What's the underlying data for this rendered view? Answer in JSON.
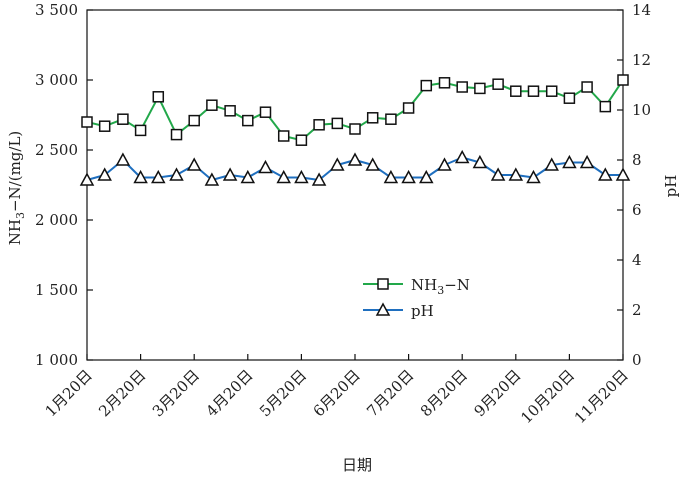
{
  "chart_data": {
    "type": "line",
    "title": "",
    "xlabel": "日期",
    "ylabel_left": "NH3−N/(mg/L)",
    "ylabel_left_parts": {
      "a": "NH",
      "sub": "3",
      "b": "−N/(mg/L)"
    },
    "ylabel_right": "pH",
    "ylim_left": [
      1000,
      3500
    ],
    "ylim_right": [
      0,
      14
    ],
    "yticks_left": [
      1000,
      1500,
      2000,
      2500,
      3000,
      3500
    ],
    "yticks_left_labels": [
      "1 000",
      "1 500",
      "2 000",
      "2 500",
      "3 000",
      "3 500"
    ],
    "yticks_right": [
      0,
      2,
      4,
      6,
      8,
      10,
      12,
      14
    ],
    "yticks_right_labels": [
      "0",
      "2",
      "4",
      "6",
      "8",
      "10",
      "12",
      "14"
    ],
    "xlim": [
      0,
      10
    ],
    "x_categories": [
      "1月20日",
      "2月20日",
      "3月20日",
      "4月20日",
      "5月20日",
      "6月20日",
      "7月20日",
      "8月20日",
      "9月20日",
      "10月20日",
      "11月20日"
    ],
    "grid": false,
    "legend_position": "center",
    "series": [
      {
        "name": "NH3−N",
        "name_parts": {
          "a": "NH",
          "sub": "3",
          "b": "−N"
        },
        "axis": "left",
        "color": "#22a84a",
        "marker": "square",
        "x": [
          0,
          0.33,
          0.67,
          1.0,
          1.33,
          1.67,
          2.0,
          2.33,
          2.67,
          3.0,
          3.33,
          3.67,
          4.0,
          4.33,
          4.67,
          5.0,
          5.33,
          5.67,
          6.0,
          6.33,
          6.67,
          7.0,
          7.33,
          7.67,
          8.0,
          8.33,
          8.67,
          9.0,
          9.33,
          9.67,
          10.0
        ],
        "values": [
          2700,
          2670,
          2720,
          2640,
          2880,
          2610,
          2710,
          2820,
          2780,
          2710,
          2770,
          2600,
          2570,
          2680,
          2690,
          2650,
          2730,
          2720,
          2800,
          2960,
          2980,
          2950,
          2940,
          2970,
          2920,
          2920,
          2920,
          2870,
          2950,
          2810,
          3000
        ]
      },
      {
        "name": "pH",
        "axis": "right",
        "color": "#1f6fbf",
        "marker": "triangle",
        "x": [
          0,
          0.33,
          0.67,
          1.0,
          1.33,
          1.67,
          2.0,
          2.33,
          2.67,
          3.0,
          3.33,
          3.67,
          4.0,
          4.33,
          4.67,
          5.0,
          5.33,
          5.67,
          6.0,
          6.33,
          6.67,
          7.0,
          7.33,
          7.67,
          8.0,
          8.33,
          8.67,
          9.0,
          9.33,
          9.67,
          10.0
        ],
        "values": [
          7.2,
          7.4,
          8.0,
          7.3,
          7.3,
          7.4,
          7.8,
          7.2,
          7.4,
          7.3,
          7.7,
          7.3,
          7.3,
          7.2,
          7.8,
          8.0,
          7.8,
          7.3,
          7.3,
          7.3,
          7.8,
          8.1,
          7.9,
          7.4,
          7.4,
          7.3,
          7.8,
          7.9,
          7.9,
          7.4,
          7.4
        ]
      }
    ]
  }
}
